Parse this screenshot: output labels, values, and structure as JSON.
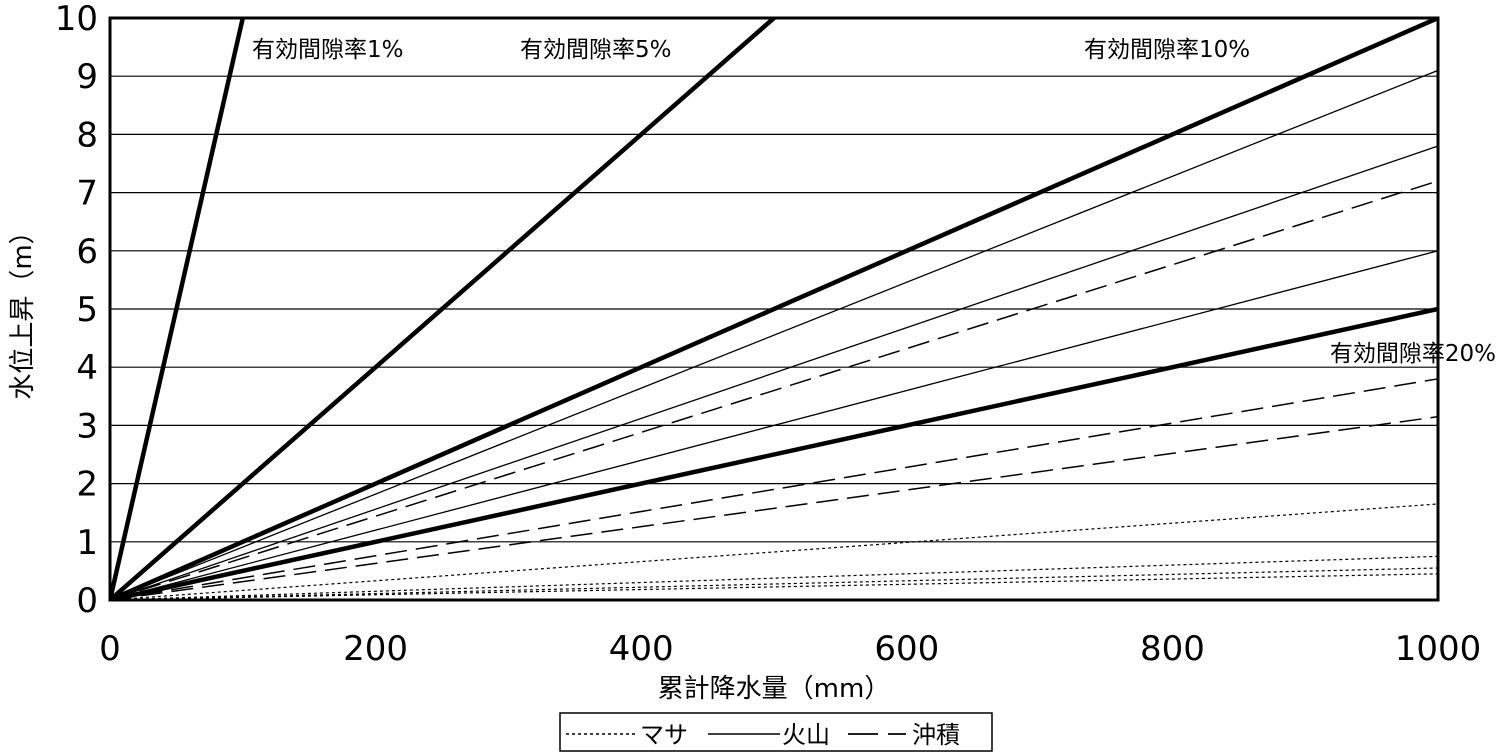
{
  "chart_data": {
    "type": "line",
    "xlabel": "累計降水量（mm）",
    "ylabel": "水位上昇（m）",
    "xlim": [
      0,
      1000
    ],
    "ylim": [
      0,
      10
    ],
    "x_ticks": [
      "0",
      "200",
      "400",
      "600",
      "800",
      "1000"
    ],
    "y_ticks": [
      "0",
      "1",
      "2",
      "3",
      "4",
      "5",
      "6",
      "7",
      "8",
      "9",
      "10"
    ],
    "grid": "horizontal",
    "legend_position": "bottom-center",
    "reference_lines": [
      {
        "label": "有効間隙率1%",
        "slope": 0.1
      },
      {
        "label": "有効間隙率5%",
        "slope": 0.02
      },
      {
        "label": "有効間隙率10%",
        "slope": 0.01
      },
      {
        "label": "有効間隙率20%",
        "slope": 0.005
      }
    ],
    "series": [
      {
        "type": "火山",
        "x": [
          0,
          1000
        ],
        "y": [
          0,
          9.1
        ]
      },
      {
        "type": "火山",
        "x": [
          0,
          1000
        ],
        "y": [
          0,
          7.8
        ]
      },
      {
        "type": "火山",
        "x": [
          0,
          1000
        ],
        "y": [
          0,
          6.0
        ]
      },
      {
        "type": "沖積",
        "x": [
          0,
          1000
        ],
        "y": [
          0,
          7.2
        ]
      },
      {
        "type": "沖積",
        "x": [
          0,
          1000
        ],
        "y": [
          0,
          3.8
        ]
      },
      {
        "type": "沖積",
        "x": [
          0,
          1000
        ],
        "y": [
          0,
          3.15
        ]
      },
      {
        "type": "マサ",
        "x": [
          0,
          1000
        ],
        "y": [
          0,
          1.65
        ]
      },
      {
        "type": "マサ",
        "x": [
          0,
          1000
        ],
        "y": [
          0,
          0.75
        ]
      },
      {
        "type": "マサ",
        "x": [
          0,
          1000
        ],
        "y": [
          0,
          0.55
        ]
      },
      {
        "type": "マサ",
        "x": [
          0,
          1000
        ],
        "y": [
          0,
          0.45
        ]
      }
    ],
    "legend": [
      "マサ",
      "火山",
      "沖積"
    ]
  }
}
